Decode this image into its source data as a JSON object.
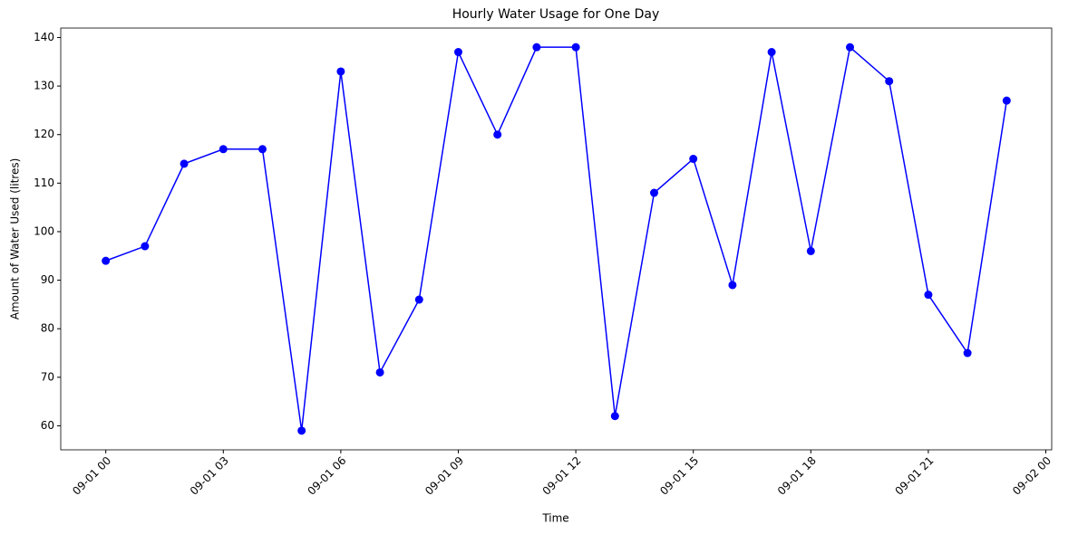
{
  "chart_data": {
    "type": "line",
    "title": "Hourly Water Usage for One Day",
    "xlabel": "Time",
    "ylabel": "Amount of Water Used (litres)",
    "x": [
      0,
      1,
      2,
      3,
      4,
      5,
      6,
      7,
      8,
      9,
      10,
      11,
      12,
      13,
      14,
      15,
      16,
      17,
      18,
      19,
      20,
      21,
      22,
      23
    ],
    "series": [
      {
        "color": "#0000ff",
        "values": [
          94,
          97,
          114,
          117,
          117,
          59,
          133,
          71,
          86,
          137,
          120,
          138,
          138,
          62,
          108,
          115,
          89,
          137,
          96,
          138,
          131,
          87,
          75,
          127
        ]
      }
    ],
    "xlim": [
      -1.15,
      24.15
    ],
    "xticks": [
      {
        "value": 0,
        "label": "09-01 00"
      },
      {
        "value": 3,
        "label": "09-01 03"
      },
      {
        "value": 6,
        "label": "09-01 06"
      },
      {
        "value": 9,
        "label": "09-01 09"
      },
      {
        "value": 12,
        "label": "09-01 12"
      },
      {
        "value": 15,
        "label": "09-01 15"
      },
      {
        "value": 18,
        "label": "09-01 18"
      },
      {
        "value": 21,
        "label": "09-01 21"
      },
      {
        "value": 24,
        "label": "09-02 00"
      }
    ],
    "ylim": [
      55.05,
      141.95
    ],
    "yticks": [
      60,
      70,
      80,
      90,
      100,
      110,
      120,
      130,
      140
    ],
    "marker": true,
    "grid": false
  }
}
